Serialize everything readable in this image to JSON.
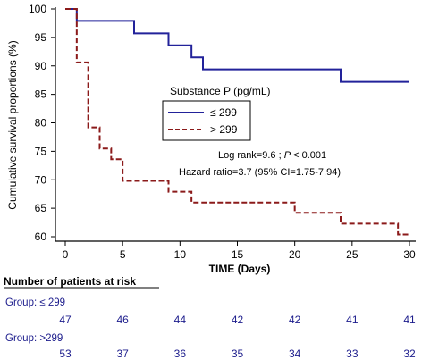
{
  "chart_data": {
    "type": "line",
    "title": "",
    "xlabel": "TIME (Days)",
    "ylabel": "Cumulative survival proportions (%)",
    "xlim": [
      0,
      30
    ],
    "ylim": [
      60,
      100
    ],
    "xticks": [
      0,
      5,
      10,
      15,
      20,
      25,
      30
    ],
    "yticks": [
      60,
      65,
      70,
      75,
      80,
      85,
      90,
      95,
      100
    ],
    "grid": false,
    "legend": {
      "title": "Substance P (pg/mL)",
      "placement": "center",
      "entries": [
        "≤ 299",
        "> 299"
      ]
    },
    "series": [
      {
        "name": "≤ 299",
        "color": "#22229a",
        "style": "solid",
        "steps": [
          [
            0,
            100
          ],
          [
            1,
            97.9
          ],
          [
            6,
            95.7
          ],
          [
            9,
            93.6
          ],
          [
            11,
            91.5
          ],
          [
            12,
            89.4
          ],
          [
            24,
            87.2
          ],
          [
            30,
            87.2
          ]
        ]
      },
      {
        "name": "> 299",
        "color": "#8b1a1a",
        "style": "dashed",
        "steps": [
          [
            0,
            100
          ],
          [
            1,
            90.6
          ],
          [
            2,
            79.2
          ],
          [
            3,
            75.5
          ],
          [
            4,
            73.6
          ],
          [
            5,
            69.8
          ],
          [
            9,
            67.9
          ],
          [
            11,
            66.0
          ],
          [
            20,
            64.2
          ],
          [
            24,
            62.3
          ],
          [
            29,
            60.4
          ],
          [
            30,
            60.4
          ]
        ]
      }
    ],
    "annotations": {
      "logrank_prefix": "Log rank=9.6 ; ",
      "logrank_p": "P",
      "logrank_suffix": " < 0.001",
      "hazard": "Hazard ratio=3.7 (95% CI=1.75-7.94)"
    }
  },
  "risk_table": {
    "title": "Number of patients at risk",
    "groups": [
      {
        "label": "Group:  ≤ 299",
        "counts": [
          "47",
          "46",
          "44",
          "42",
          "42",
          "41",
          "41"
        ]
      },
      {
        "label": "Group:  >299",
        "counts": [
          "53",
          "37",
          "36",
          "35",
          "34",
          "33",
          "32"
        ]
      }
    ]
  }
}
